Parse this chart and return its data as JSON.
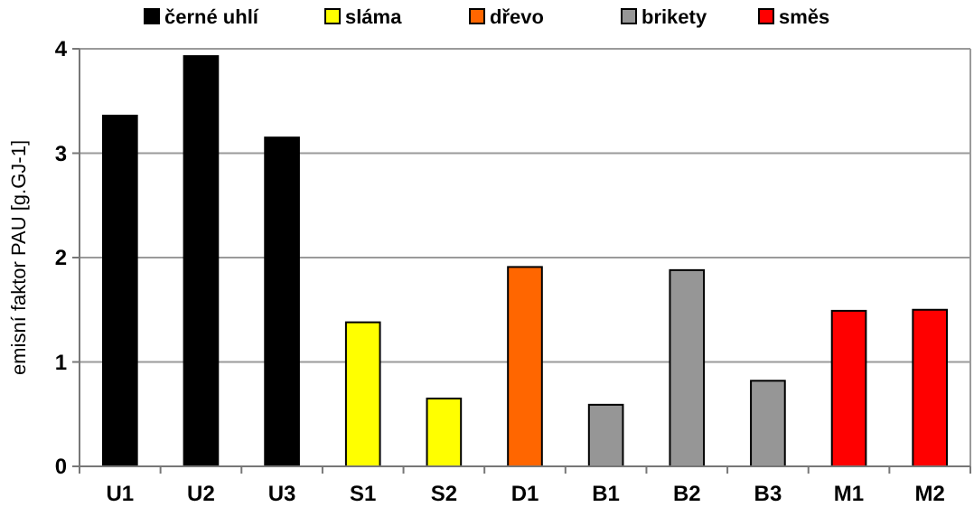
{
  "chart_data": {
    "type": "bar",
    "ylabel": "emisní faktor PAU [g.GJ-1]",
    "categories": [
      "U1",
      "U2",
      "U3",
      "S1",
      "S2",
      "D1",
      "B1",
      "B2",
      "B3",
      "M1",
      "M2"
    ],
    "series": [
      {
        "name": "černé uhlí",
        "color": "#000000",
        "values": [
          3.36,
          3.93,
          3.15,
          null,
          null,
          null,
          null,
          null,
          null,
          null,
          null
        ]
      },
      {
        "name": "sláma",
        "color": "#ffff00",
        "values": [
          null,
          null,
          null,
          1.38,
          0.65,
          null,
          null,
          null,
          null,
          null,
          null
        ]
      },
      {
        "name": "dřevo",
        "color": "#ff6600",
        "values": [
          null,
          null,
          null,
          null,
          null,
          1.91,
          null,
          null,
          null,
          null,
          null
        ]
      },
      {
        "name": "brikety",
        "color": "#969696",
        "values": [
          null,
          null,
          null,
          null,
          null,
          null,
          0.59,
          1.88,
          0.82,
          null,
          null
        ]
      },
      {
        "name": "směs",
        "color": "#ff0000",
        "values": [
          null,
          null,
          null,
          null,
          null,
          null,
          null,
          null,
          null,
          1.49,
          1.5
        ]
      }
    ],
    "ylim": [
      0,
      4
    ],
    "yticks": [
      0,
      1,
      2,
      3,
      4
    ],
    "grid": "y",
    "legend": "top"
  }
}
